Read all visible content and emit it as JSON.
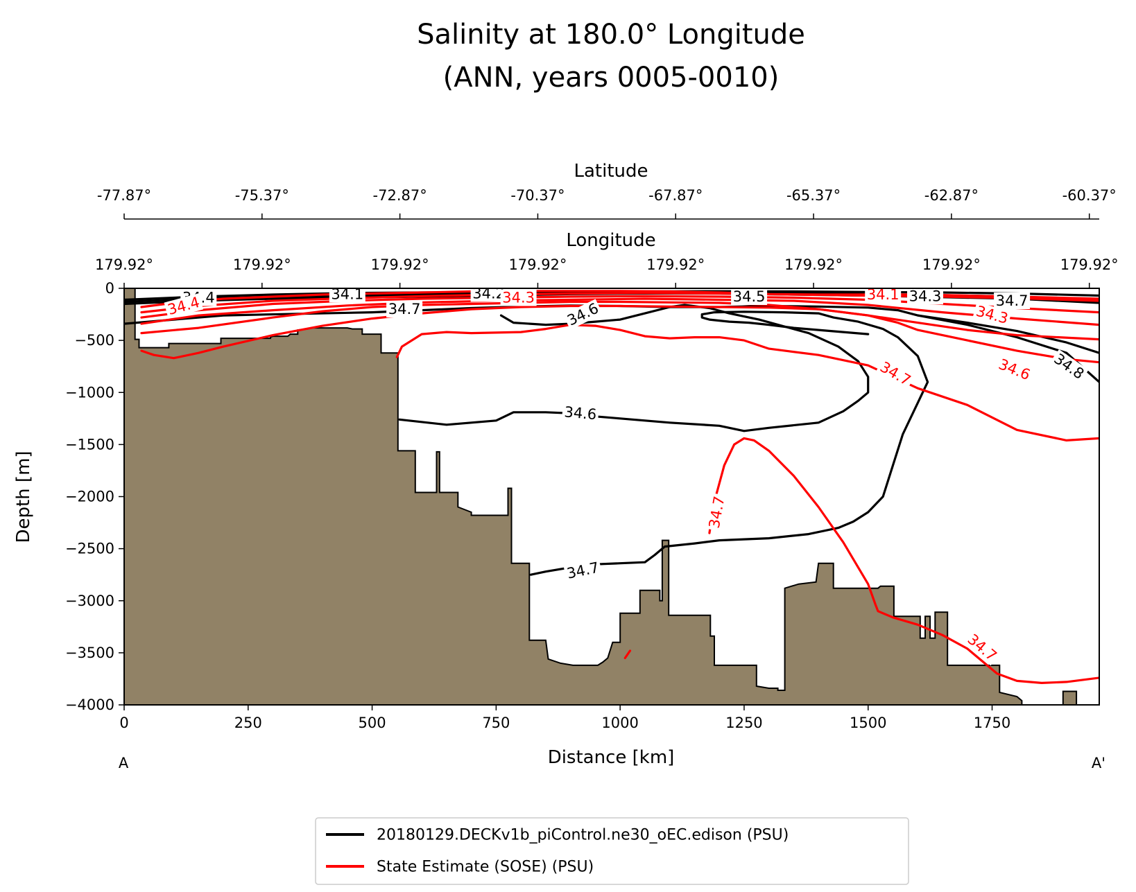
{
  "chart_data": {
    "type": "contour-section",
    "title": "Salinity at 180.0° Longitude",
    "subtitle": "(ANN, years 0005-0010)",
    "xlabel": "Distance [km]",
    "ylabel": "Depth [m]",
    "top_axis_1_label": "Latitude",
    "top_axis_2_label": "Longitude",
    "section_start_label": "A",
    "section_end_label": "A'",
    "xlim": [
      0,
      1966
    ],
    "ylim": [
      -4000,
      0
    ],
    "x_ticks": [
      0,
      250,
      500,
      750,
      1000,
      1250,
      1500,
      1750
    ],
    "y_ticks": [
      0,
      -500,
      -1000,
      -1500,
      -2000,
      -2500,
      -3000,
      -3500,
      -4000
    ],
    "y_tick_labels": [
      "0",
      "−500",
      "−1000",
      "−1500",
      "−2000",
      "−2500",
      "−3000",
      "−3500",
      "−4000"
    ],
    "latitude_ticks": {
      "km": [
        0,
        278,
        556,
        834,
        1112,
        1390,
        1668,
        1946
      ],
      "labels": [
        "-77.87°",
        "-75.37°",
        "-72.87°",
        "-70.37°",
        "-67.87°",
        "-65.37°",
        "-62.87°",
        "-60.37°"
      ]
    },
    "longitude_ticks": {
      "km": [
        0,
        278,
        556,
        834,
        1112,
        1390,
        1668,
        1946
      ],
      "labels": [
        "179.92°",
        "179.92°",
        "179.92°",
        "179.92°",
        "179.92°",
        "179.92°",
        "179.92°",
        "179.92°"
      ]
    },
    "colors": {
      "model": "#000000",
      "obs": "#ff0000",
      "bathymetry": "#918266"
    },
    "legend": {
      "placement": "bottom-center",
      "entries": [
        {
          "label": "20180129.DECKv1b_piControl.ne30_oEC.edison (PSU)",
          "color": "#000000"
        },
        {
          "label": "State Estimate (SOSE) (PSU)",
          "color": "#ff0000"
        }
      ]
    },
    "bathymetry": [
      [
        0,
        0
      ],
      [
        22,
        0
      ],
      [
        22,
        -490
      ],
      [
        30,
        -490
      ],
      [
        30,
        -570
      ],
      [
        90,
        -570
      ],
      [
        90,
        -530
      ],
      [
        195,
        -530
      ],
      [
        195,
        -480
      ],
      [
        295,
        -480
      ],
      [
        295,
        -470
      ],
      [
        300,
        -460
      ],
      [
        330,
        -460
      ],
      [
        335,
        -440
      ],
      [
        350,
        -440
      ],
      [
        350,
        -400
      ],
      [
        370,
        -390
      ],
      [
        380,
        -380
      ],
      [
        450,
        -380
      ],
      [
        460,
        -390
      ],
      [
        480,
        -390
      ],
      [
        480,
        -440
      ],
      [
        518,
        -440
      ],
      [
        518,
        -620
      ],
      [
        552,
        -620
      ],
      [
        552,
        -1560
      ],
      [
        587,
        -1560
      ],
      [
        587,
        -1960
      ],
      [
        630,
        -1960
      ],
      [
        630,
        -1570
      ],
      [
        636,
        -1570
      ],
      [
        636,
        -1960
      ],
      [
        673,
        -1960
      ],
      [
        673,
        -2100
      ],
      [
        700,
        -2150
      ],
      [
        700,
        -2180
      ],
      [
        774,
        -2180
      ],
      [
        774,
        -1920
      ],
      [
        781,
        -1920
      ],
      [
        781,
        -2640
      ],
      [
        817,
        -2640
      ],
      [
        817,
        -3380
      ],
      [
        850,
        -3380
      ],
      [
        855,
        -3560
      ],
      [
        880,
        -3600
      ],
      [
        905,
        -3620
      ],
      [
        955,
        -3620
      ],
      [
        965,
        -3590
      ],
      [
        975,
        -3550
      ],
      [
        985,
        -3400
      ],
      [
        1000,
        -3400
      ],
      [
        1000,
        -3120
      ],
      [
        1040,
        -3120
      ],
      [
        1040,
        -2900
      ],
      [
        1080,
        -2900
      ],
      [
        1080,
        -3000
      ],
      [
        1085,
        -3000
      ],
      [
        1085,
        -2420
      ],
      [
        1098,
        -2420
      ],
      [
        1098,
        -3140
      ],
      [
        1182,
        -3140
      ],
      [
        1182,
        -3340
      ],
      [
        1190,
        -3340
      ],
      [
        1190,
        -3620
      ],
      [
        1275,
        -3620
      ],
      [
        1275,
        -3820
      ],
      [
        1300,
        -3840
      ],
      [
        1318,
        -3840
      ],
      [
        1318,
        -3860
      ],
      [
        1332,
        -3860
      ],
      [
        1332,
        -2880
      ],
      [
        1360,
        -2840
      ],
      [
        1395,
        -2820
      ],
      [
        1400,
        -2640
      ],
      [
        1430,
        -2640
      ],
      [
        1430,
        -2880
      ],
      [
        1520,
        -2880
      ],
      [
        1525,
        -2860
      ],
      [
        1552,
        -2860
      ],
      [
        1552,
        -3150
      ],
      [
        1605,
        -3150
      ],
      [
        1605,
        -3360
      ],
      [
        1615,
        -3360
      ],
      [
        1615,
        -3150
      ],
      [
        1625,
        -3150
      ],
      [
        1625,
        -3360
      ],
      [
        1635,
        -3360
      ],
      [
        1635,
        -3110
      ],
      [
        1660,
        -3110
      ],
      [
        1660,
        -3620
      ],
      [
        1765,
        -3620
      ],
      [
        1765,
        -3880
      ],
      [
        1800,
        -3920
      ],
      [
        1810,
        -3960
      ],
      [
        1810,
        -4000
      ],
      [
        0,
        -4000
      ]
    ],
    "bathymetry_2": [
      [
        1893,
        -4000
      ],
      [
        1893,
        -3870
      ],
      [
        1920,
        -3870
      ],
      [
        1920,
        -4000
      ]
    ],
    "model_contours": [
      {
        "level": 34.1,
        "x": [
          0,
          150,
          300,
          450,
          600,
          750,
          900,
          1050,
          1200,
          1350,
          1500,
          1650,
          1800,
          1966
        ],
        "y": [
          -110,
          -80,
          -60,
          -45,
          -40,
          -38,
          -35,
          -30,
          -28,
          -30,
          -35,
          -40,
          -50,
          -70
        ]
      },
      {
        "level": 34.3,
        "x": [
          0,
          150,
          300,
          450,
          600,
          750,
          900,
          1050,
          1200,
          1350,
          1500,
          1650,
          1800,
          1966
        ],
        "y": [
          -130,
          -100,
          -80,
          -70,
          -60,
          -55,
          -45,
          -40,
          -40,
          -45,
          -55,
          -65,
          -80,
          -110
        ]
      },
      {
        "level": 34.4,
        "x": [
          0,
          150,
          300,
          450,
          600,
          750,
          900,
          1050,
          1200,
          1350,
          1500,
          1650,
          1800,
          1966
        ],
        "y": [
          -150,
          -120,
          -100,
          -90,
          -80,
          -70,
          -55,
          -50,
          -50,
          -60,
          -70,
          -85,
          -100,
          -140
        ]
      },
      {
        "level": 34.7,
        "x": [
          0,
          200,
          350,
          500,
          600,
          700,
          800,
          900,
          1000,
          1100,
          1200,
          1300,
          1400,
          1500,
          1560,
          1600,
          1700,
          1800,
          1900,
          1966
        ],
        "y": [
          -340,
          -260,
          -245,
          -230,
          -210,
          -190,
          -175,
          -165,
          -170,
          -180,
          -180,
          -170,
          -175,
          -185,
          -210,
          -260,
          -330,
          -410,
          -520,
          -620
        ]
      },
      {
        "level": 34.8,
        "x": [
          1600,
          1700,
          1800,
          1900,
          1966
        ],
        "y": [
          -260,
          -350,
          -470,
          -620,
          -900
        ]
      },
      {
        "level": 34.6,
        "x": [
          555,
          650,
          750,
          785,
          850,
          900,
          950,
          1000,
          1100,
          1200,
          1250,
          1300,
          1400,
          1450,
          1480,
          1500,
          1500,
          1480,
          1440,
          1380,
          1280,
          1220,
          1180,
          1130,
          1100,
          1050,
          1000,
          950,
          900,
          850,
          785,
          760
        ],
        "y": [
          -1260,
          -1310,
          -1270,
          -1190,
          -1190,
          -1200,
          -1230,
          -1250,
          -1290,
          -1320,
          -1370,
          -1340,
          -1290,
          -1180,
          -1080,
          -1000,
          -850,
          -700,
          -560,
          -430,
          -300,
          -240,
          -190,
          -160,
          -180,
          -240,
          -300,
          -320,
          -340,
          -350,
          -330,
          -260
        ]
      },
      {
        "level": 34.7,
        "x": [
          820,
          850,
          900,
          950,
          1000,
          1050,
          1070,
          1090,
          1150,
          1200,
          1250,
          1300,
          1380,
          1440,
          1470,
          1500,
          1530,
          1550,
          1570,
          1600,
          1620,
          1600,
          1560,
          1530,
          1480,
          1430,
          1400,
          1330,
          1250,
          1190,
          1165,
          1165,
          1180,
          1220,
          1260,
          1300,
          1350,
          1400,
          1450,
          1500
        ],
        "y": [
          -2750,
          -2720,
          -2680,
          -2650,
          -2640,
          -2630,
          -2560,
          -2480,
          -2450,
          -2420,
          -2410,
          -2400,
          -2360,
          -2300,
          -2240,
          -2150,
          -2000,
          -1700,
          -1400,
          -1100,
          -900,
          -650,
          -470,
          -390,
          -320,
          -280,
          -240,
          -230,
          -225,
          -230,
          -250,
          -280,
          -300,
          -320,
          -330,
          -350,
          -380,
          -400,
          -420,
          -440
        ]
      }
    ],
    "obs_contours": [
      {
        "level": 34.1,
        "x": [
          35,
          100,
          200,
          300,
          400,
          500,
          600,
          700,
          800,
          900,
          1000,
          1100,
          1200,
          1300,
          1400,
          1500,
          1600,
          1700,
          1800,
          1966
        ],
        "y": [
          -180,
          -140,
          -100,
          -80,
          -60,
          -50,
          -40,
          -30,
          -25,
          -25,
          -25,
          -30,
          -40,
          -55,
          -60,
          -60,
          -60,
          -70,
          -80,
          -100
        ]
      },
      {
        "level": 34.2,
        "x": [
          35,
          150,
          300,
          450,
          600,
          750,
          900,
          1050,
          1200,
          1350,
          1500,
          1650,
          1800,
          1966
        ],
        "y": [
          -230,
          -170,
          -120,
          -95,
          -75,
          -60,
          -50,
          -45,
          -50,
          -60,
          -70,
          -80,
          -95,
          -120
        ]
      },
      {
        "level": 34.3,
        "x": [
          35,
          150,
          300,
          450,
          600,
          750,
          900,
          1050,
          1200,
          1350,
          1500,
          1650,
          1800,
          1966
        ],
        "y": [
          -280,
          -210,
          -150,
          -120,
          -100,
          -90,
          -80,
          -75,
          -80,
          -90,
          -110,
          -150,
          -190,
          -230
        ]
      },
      {
        "level": 34.4,
        "x": [
          35,
          150,
          300,
          450,
          600,
          750,
          900,
          1050,
          1200,
          1350,
          1500,
          1650,
          1800,
          1966
        ],
        "y": [
          -340,
          -260,
          -210,
          -165,
          -135,
          -120,
          -110,
          -100,
          -110,
          -120,
          -160,
          -230,
          -290,
          -350
        ]
      },
      {
        "level": 34.5,
        "x": [
          35,
          150,
          300,
          400,
          500,
          600,
          700,
          800,
          900,
          1000,
          1100,
          1200,
          1300,
          1400,
          1500,
          1600,
          1700,
          1800,
          1966
        ],
        "y": [
          -430,
          -380,
          -280,
          -220,
          -180,
          -160,
          -150,
          -140,
          -130,
          -130,
          -135,
          -140,
          -160,
          -200,
          -260,
          -330,
          -400,
          -450,
          -490
        ]
      },
      {
        "level": 34.6,
        "x": [
          35,
          60,
          100,
          150,
          200,
          300,
          400,
          500,
          600,
          700,
          800,
          900,
          1000,
          1100,
          1200,
          1300,
          1400,
          1500,
          1560,
          1600,
          1700,
          1800,
          1900,
          1966
        ],
        "y": [
          -600,
          -640,
          -670,
          -620,
          -560,
          -450,
          -360,
          -290,
          -240,
          -200,
          -180,
          -170,
          -170,
          -175,
          -180,
          -185,
          -200,
          -260,
          -330,
          -400,
          -500,
          -600,
          -680,
          -710
        ]
      },
      {
        "level": 34.7,
        "x": [
          550,
          560,
          600,
          650,
          700,
          800,
          850,
          900,
          950,
          1000,
          1050,
          1100,
          1150,
          1200,
          1250,
          1300,
          1400,
          1500,
          1600,
          1700,
          1800,
          1900,
          1966
        ],
        "y": [
          -660,
          -560,
          -440,
          -420,
          -430,
          -420,
          -390,
          -350,
          -360,
          -400,
          -460,
          -480,
          -470,
          -470,
          -500,
          -580,
          -640,
          -740,
          -960,
          -1120,
          -1360,
          -1460,
          -1440
        ]
      },
      {
        "level": 34.7,
        "x": [
          1180,
          1190,
          1210,
          1230,
          1250,
          1270,
          1300,
          1350,
          1400,
          1450,
          1500,
          1515,
          1520,
          1550,
          1600,
          1650,
          1700,
          1760,
          1800,
          1850,
          1900,
          1966
        ],
        "y": [
          -2350,
          -2050,
          -1700,
          -1500,
          -1440,
          -1460,
          -1560,
          -1800,
          -2100,
          -2440,
          -2840,
          -3040,
          -3100,
          -3160,
          -3230,
          -3330,
          -3460,
          -3700,
          -3770,
          -3790,
          -3780,
          -3740
        ]
      },
      {
        "level": 34.7,
        "x": [
          1010,
          1020
        ],
        "y": [
          -3550,
          -3480
        ]
      }
    ],
    "model_labels": [
      {
        "text": "34.4",
        "x": 150,
        "y": -90,
        "rot": 0
      },
      {
        "text": "34.1",
        "x": 450,
        "y": -55,
        "rot": 0
      },
      {
        "text": "34.7",
        "x": 565,
        "y": -200,
        "rot": 0
      },
      {
        "text": "34.2",
        "x": 735,
        "y": -50,
        "rot": 0
      },
      {
        "text": "34.6",
        "x": 925,
        "y": -250,
        "rot": -26
      },
      {
        "text": "34.5",
        "x": 1260,
        "y": -80,
        "rot": 0
      },
      {
        "text": "34.3",
        "x": 1615,
        "y": -75,
        "rot": 0
      },
      {
        "text": "34.7",
        "x": 1790,
        "y": -120,
        "rot": 0
      },
      {
        "text": "34.8",
        "x": 1905,
        "y": -750,
        "rot": 35
      },
      {
        "text": "34.6",
        "x": 920,
        "y": -1200,
        "rot": 5
      },
      {
        "text": "34.7",
        "x": 925,
        "y": -2710,
        "rot": -12
      }
    ],
    "obs_labels": [
      {
        "text": "34.4",
        "x": 120,
        "y": -170,
        "rot": -15
      },
      {
        "text": "34.3",
        "x": 795,
        "y": -90,
        "rot": 0
      },
      {
        "text": "34.1",
        "x": 1530,
        "y": -60,
        "rot": 0
      },
      {
        "text": "34.3",
        "x": 1750,
        "y": -255,
        "rot": 15
      },
      {
        "text": "34.7",
        "x": 1555,
        "y": -820,
        "rot": 30
      },
      {
        "text": "34.6",
        "x": 1795,
        "y": -780,
        "rot": 22
      },
      {
        "text": "34.7",
        "x": 1195,
        "y": -2150,
        "rot": -80
      },
      {
        "text": "34.7",
        "x": 1730,
        "y": -3450,
        "rot": 40
      }
    ]
  }
}
